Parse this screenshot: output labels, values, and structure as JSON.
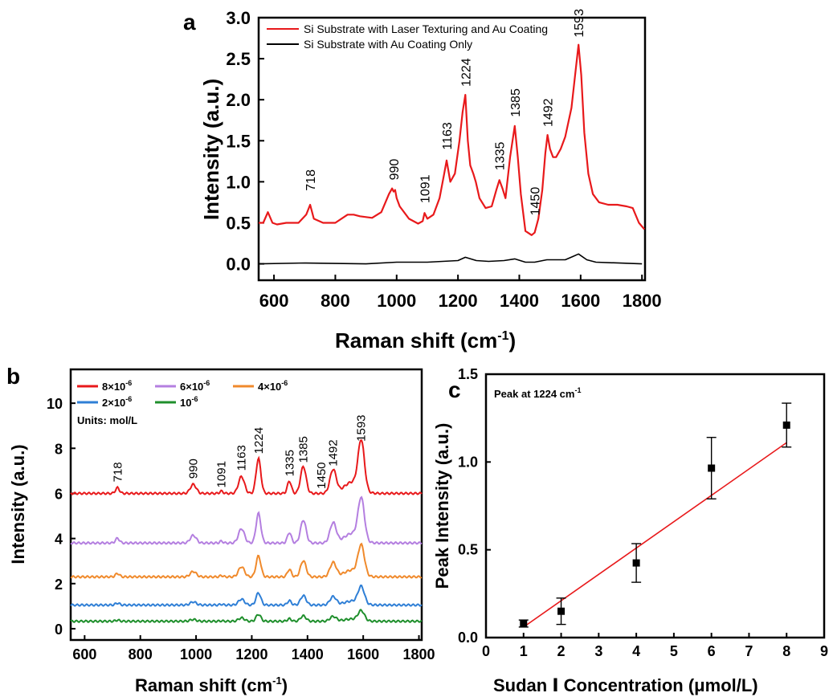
{
  "chart_data": [
    {
      "panel": "a",
      "type": "line",
      "xlabel": "Raman shift (cm-1)",
      "ylabel": "Intensity (a.u.)",
      "xlim": [
        550,
        1810
      ],
      "ylim": [
        -0.2,
        3.0
      ],
      "xticks": [
        "600",
        "800",
        "1000",
        "1200",
        "1400",
        "1600",
        "1800"
      ],
      "yticks": [
        "0.0",
        "0.5",
        "1.0",
        "1.5",
        "2.0",
        "2.5",
        "3.0"
      ],
      "legend_position": "top",
      "series": [
        {
          "name": "Si Substrate with Laser Texturing and Au Coating",
          "color": "#e8191b",
          "x": [
            550,
            565,
            580,
            595,
            610,
            640,
            680,
            705,
            718,
            730,
            760,
            800,
            840,
            860,
            880,
            920,
            950,
            975,
            985,
            990,
            995,
            1000,
            1010,
            1040,
            1070,
            1085,
            1091,
            1100,
            1120,
            1140,
            1155,
            1163,
            1175,
            1190,
            1205,
            1215,
            1224,
            1232,
            1240,
            1250,
            1258,
            1270,
            1290,
            1310,
            1325,
            1335,
            1345,
            1355,
            1370,
            1385,
            1395,
            1405,
            1420,
            1440,
            1450,
            1462,
            1475,
            1485,
            1492,
            1500,
            1510,
            1520,
            1535,
            1550,
            1570,
            1585,
            1593,
            1602,
            1612,
            1625,
            1640,
            1660,
            1690,
            1720,
            1750,
            1770,
            1790,
            1808
          ],
          "y": [
            0.5,
            0.5,
            0.63,
            0.5,
            0.48,
            0.5,
            0.5,
            0.6,
            0.72,
            0.55,
            0.5,
            0.5,
            0.6,
            0.6,
            0.58,
            0.56,
            0.63,
            0.85,
            0.92,
            0.88,
            0.9,
            0.8,
            0.7,
            0.55,
            0.49,
            0.52,
            0.62,
            0.55,
            0.6,
            0.8,
            1.1,
            1.26,
            1.0,
            1.1,
            1.5,
            1.85,
            2.06,
            1.5,
            1.2,
            1.1,
            1.0,
            0.8,
            0.68,
            0.7,
            0.9,
            1.02,
            0.92,
            0.8,
            1.3,
            1.68,
            1.3,
            0.85,
            0.4,
            0.35,
            0.38,
            0.55,
            0.9,
            1.35,
            1.57,
            1.4,
            1.3,
            1.3,
            1.4,
            1.55,
            1.9,
            2.4,
            2.67,
            2.3,
            1.6,
            1.1,
            0.85,
            0.75,
            0.72,
            0.72,
            0.7,
            0.68,
            0.5,
            0.42
          ]
        },
        {
          "name": "Si Substrate with Au Coating Only",
          "color": "#000000",
          "x": [
            550,
            700,
            900,
            1000,
            1100,
            1150,
            1200,
            1224,
            1260,
            1300,
            1350,
            1385,
            1420,
            1450,
            1490,
            1550,
            1575,
            1593,
            1620,
            1650,
            1800
          ],
          "y": [
            0.0,
            0.01,
            0.0,
            0.02,
            0.02,
            0.03,
            0.04,
            0.08,
            0.04,
            0.03,
            0.04,
            0.06,
            0.02,
            0.02,
            0.05,
            0.05,
            0.09,
            0.12,
            0.05,
            0.02,
            0.0
          ]
        }
      ],
      "annotations": [
        "718",
        "990",
        "1091",
        "1163",
        "1224",
        "1335",
        "1385",
        "1450",
        "1492",
        "1593"
      ]
    },
    {
      "panel": "b",
      "type": "line",
      "xlabel": "Raman shift (cm-1)",
      "ylabel": "Intensity (a.u.)",
      "xlim": [
        550,
        1810
      ],
      "ylim": [
        -0.5,
        11.5
      ],
      "xticks": [
        "600",
        "800",
        "1000",
        "1200",
        "1400",
        "1600",
        "1800"
      ],
      "yticks": [
        "0",
        "2",
        "4",
        "6",
        "8",
        "10"
      ],
      "units_note": "Units: mol/L",
      "legend_position": "top-left",
      "series_offsets": [
        6.0,
        3.8,
        2.3,
        1.05,
        0.33
      ],
      "series_peak_scales": [
        1.0,
        0.85,
        0.6,
        0.35,
        0.2
      ],
      "series": [
        {
          "name": "8×10-6",
          "color": "#e8191b"
        },
        {
          "name": "6×10-6",
          "color": "#b47fe0"
        },
        {
          "name": "4×10-6",
          "color": "#f08a2c"
        },
        {
          "name": "2×10-6",
          "color": "#2f7fd6"
        },
        {
          "name": "10-6",
          "color": "#1f8f2c"
        }
      ],
      "peak_shape": {
        "x": [
          718,
          990,
          1091,
          1163,
          1224,
          1335,
          1385,
          1450,
          1492,
          1560,
          1593
        ],
        "h": [
          0.25,
          0.4,
          0.1,
          0.75,
          1.55,
          0.55,
          1.2,
          0.0,
          1.05,
          0.5,
          2.15
        ],
        "w": [
          10,
          15,
          8,
          15,
          12,
          10,
          14,
          10,
          16,
          40,
          16
        ]
      },
      "annotations": [
        "718",
        "990",
        "1091",
        "1163",
        "1224",
        "1335",
        "1385",
        "1450",
        "1492",
        "1593"
      ]
    },
    {
      "panel": "c",
      "type": "scatter",
      "xlabel": "Sudan Ⅰ Concentration (μmol/L)",
      "ylabel": "Peak Intensity (a.u.)",
      "note": "Peak at 1224 cm-1",
      "xlim": [
        0,
        9
      ],
      "ylim": [
        0,
        1.5
      ],
      "xticks": [
        "0",
        "1",
        "2",
        "3",
        "4",
        "5",
        "6",
        "7",
        "8",
        "9"
      ],
      "yticks": [
        "0.0",
        "0.5",
        "1.0",
        "1.5"
      ],
      "points": [
        {
          "x": 1,
          "y": 0.08,
          "err": 0.02
        },
        {
          "x": 2,
          "y": 0.15,
          "err": 0.075
        },
        {
          "x": 4,
          "y": 0.425,
          "err": 0.11
        },
        {
          "x": 6,
          "y": 0.965,
          "err": 0.175
        },
        {
          "x": 8,
          "y": 1.21,
          "err": 0.125
        }
      ],
      "fit_line": {
        "x": [
          1,
          8
        ],
        "y": [
          0.06,
          1.11
        ],
        "color": "#e8191b"
      }
    }
  ]
}
